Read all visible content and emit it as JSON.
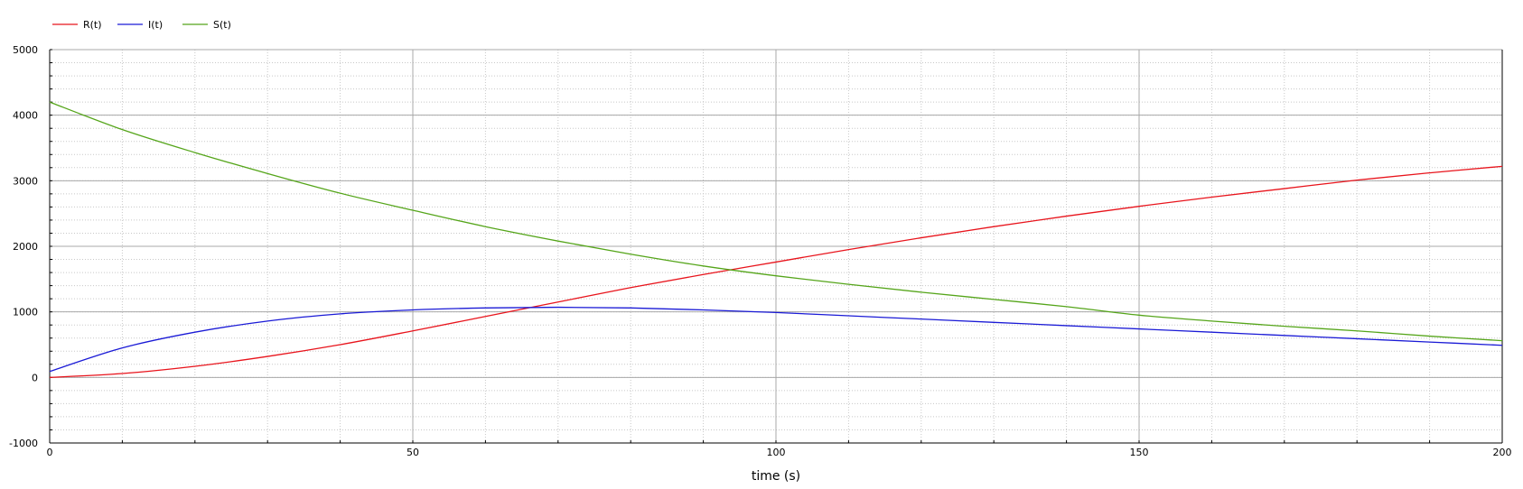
{
  "chart_data": {
    "type": "line",
    "title": "",
    "xlabel": "time (s)",
    "ylabel": "",
    "xlim": [
      0,
      200
    ],
    "ylim": [
      -1000,
      5000
    ],
    "x_ticks": [
      0,
      50,
      100,
      150,
      200
    ],
    "y_ticks": [
      -1000,
      0,
      1000,
      2000,
      3000,
      4000,
      5000
    ],
    "x_tick_labels": [
      "0",
      "50",
      "100",
      "150",
      "200"
    ],
    "y_tick_labels": [
      "-1000",
      "0",
      "1000",
      "2000",
      "3000",
      "4000",
      "5000"
    ],
    "grid": true,
    "legend_position": "top-left",
    "x": [
      0,
      10,
      20,
      30,
      40,
      50,
      60,
      70,
      80,
      90,
      100,
      110,
      120,
      130,
      140,
      150,
      160,
      170,
      180,
      190,
      200
    ],
    "series": [
      {
        "name": "R(t)",
        "color": "#e8141c",
        "values": [
          0,
          60,
          170,
          320,
          500,
          710,
          930,
          1150,
          1370,
          1570,
          1760,
          1950,
          2130,
          2300,
          2460,
          2610,
          2750,
          2880,
          3010,
          3120,
          3220
        ]
      },
      {
        "name": "I(t)",
        "color": "#1a1ad6",
        "values": [
          90,
          450,
          690,
          860,
          970,
          1030,
          1060,
          1070,
          1060,
          1030,
          990,
          940,
          890,
          840,
          790,
          740,
          690,
          640,
          590,
          540,
          490
        ]
      },
      {
        "name": "S(t)",
        "color": "#55a51a",
        "values": [
          4200,
          3780,
          3430,
          3110,
          2810,
          2550,
          2300,
          2080,
          1880,
          1700,
          1550,
          1420,
          1300,
          1190,
          1080,
          950,
          860,
          780,
          710,
          630,
          560
        ]
      }
    ]
  }
}
